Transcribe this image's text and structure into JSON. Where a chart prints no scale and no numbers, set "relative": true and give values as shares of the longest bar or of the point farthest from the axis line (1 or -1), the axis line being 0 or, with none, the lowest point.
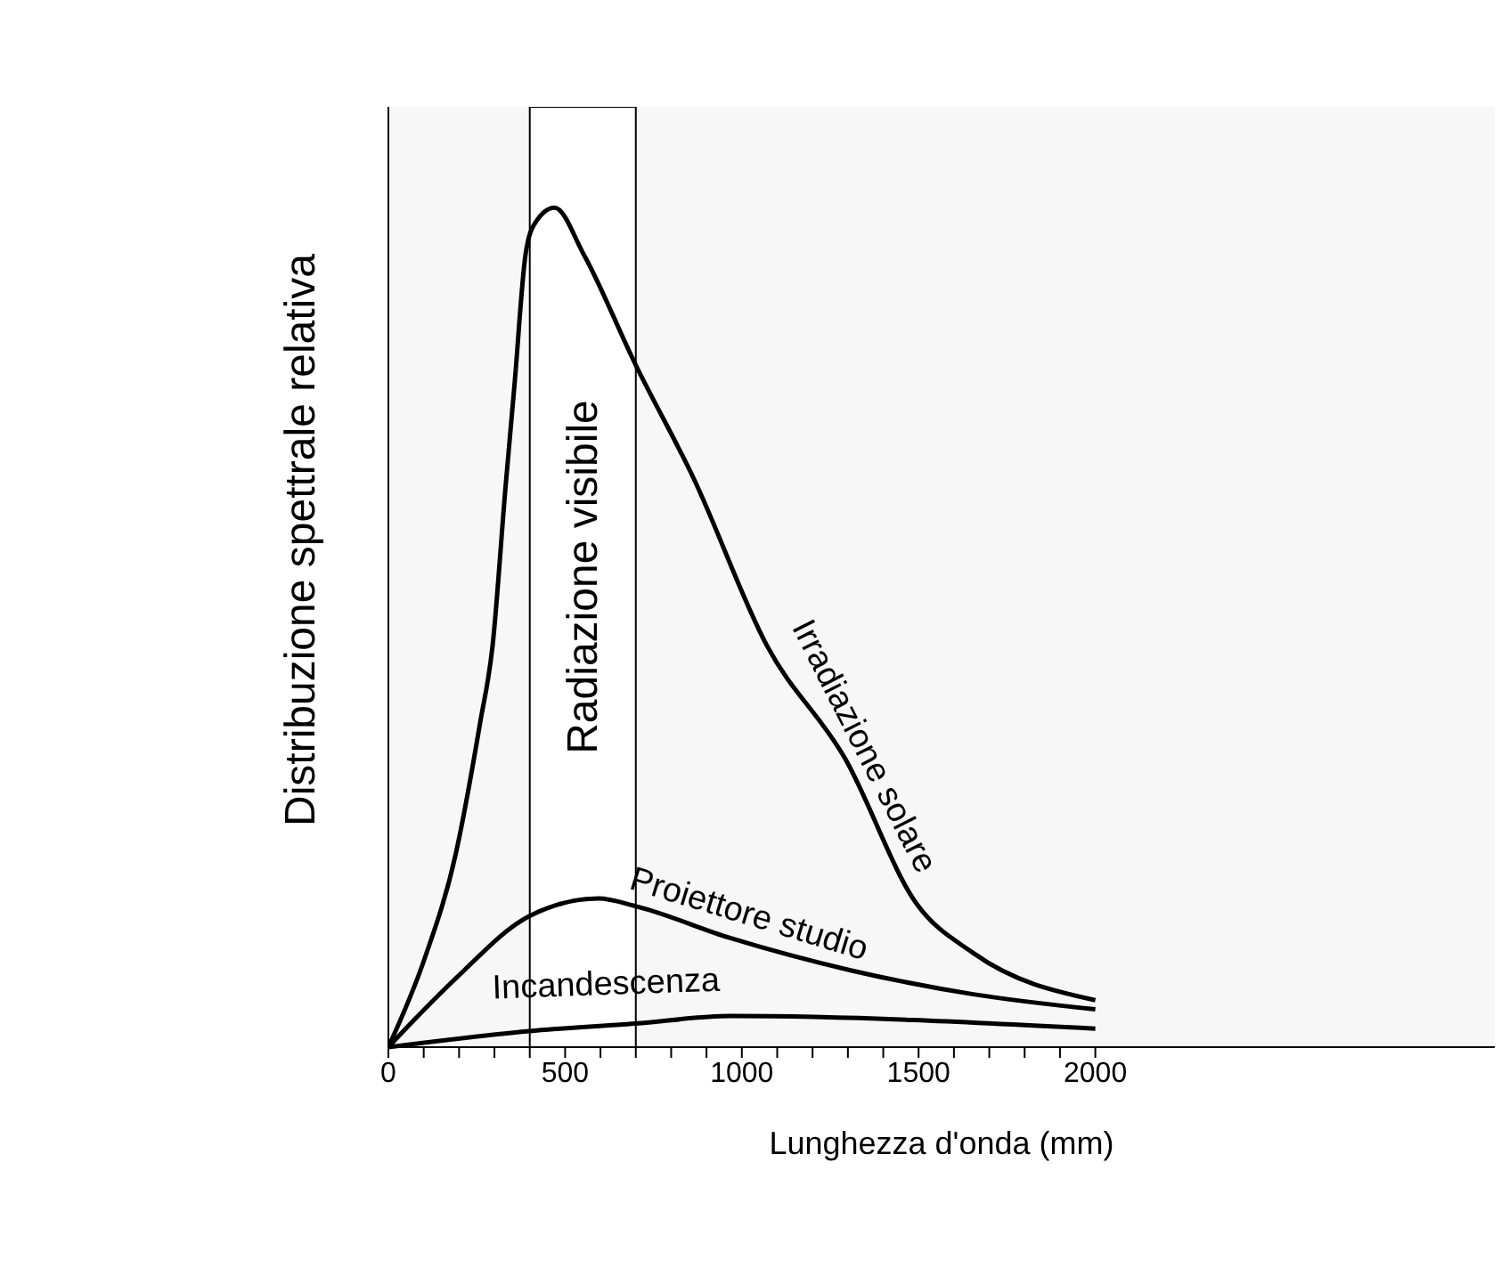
{
  "chart_data": {
    "type": "line",
    "xlabel": "Lunghezza d'onda (mm)",
    "ylabel": "Distribuzione spettrale relativa",
    "relative": true,
    "xlim": [
      0,
      3130
    ],
    "xticks": [
      0,
      {
        "value": 100,
        "label": null
      },
      {
        "value": 200,
        "label": null
      },
      {
        "value": 300,
        "label": null
      },
      {
        "value": 400,
        "label": null
      },
      500,
      {
        "value": 600,
        "label": null
      },
      {
        "value": 700,
        "label": null
      },
      {
        "value": 800,
        "label": null
      },
      {
        "value": 900,
        "label": null
      },
      1000,
      {
        "value": 1100,
        "label": null
      },
      {
        "value": 1200,
        "label": null
      },
      {
        "value": 1300,
        "label": null
      },
      {
        "value": 1400,
        "label": null
      },
      1500,
      {
        "value": 1600,
        "label": null
      },
      {
        "value": 1700,
        "label": null
      },
      {
        "value": 1800,
        "label": null
      },
      {
        "value": 1900,
        "label": null
      },
      2000
    ],
    "series": [
      {
        "name": "Irradiazione solare",
        "color": "#000000",
        "x": [
          0,
          103,
          191,
          259,
          295,
          331,
          357,
          388,
          414,
          470,
          553,
          698,
          863,
          1070,
          1293,
          1494,
          1655,
          2000
        ],
        "values": [
          0,
          0.106,
          0.231,
          0.385,
          0.479,
          0.665,
          0.79,
          0.944,
          0.981,
          1,
          0.944,
          0.814,
          0.678,
          0.479,
          0.343,
          0.171,
          0.112,
          0.056
        ]
      },
      {
        "name": "Proiettore studio",
        "color": "#000000",
        "x": [
          0,
          72,
          191,
          398,
          595,
          698,
          967,
          1313,
          1655,
          2000
        ],
        "values": [
          0,
          0.032,
          0.082,
          0.156,
          0.177,
          0.168,
          0.13,
          0.091,
          0.063,
          0.045
        ]
      },
      {
        "name": "Incandescenza",
        "color": "#000000",
        "x": [
          0,
          398,
          698,
          967,
          2000
        ],
        "values": [
          0,
          0.019,
          0.028,
          0.037,
          0.022
        ]
      }
    ],
    "bands": [
      {
        "axis": "x",
        "from": 400,
        "to": 700,
        "label": "Radiazione visibile",
        "color": "#ffffff"
      }
    ],
    "grid": false,
    "legend": false,
    "marker": "none",
    "line_style": "solid"
  }
}
